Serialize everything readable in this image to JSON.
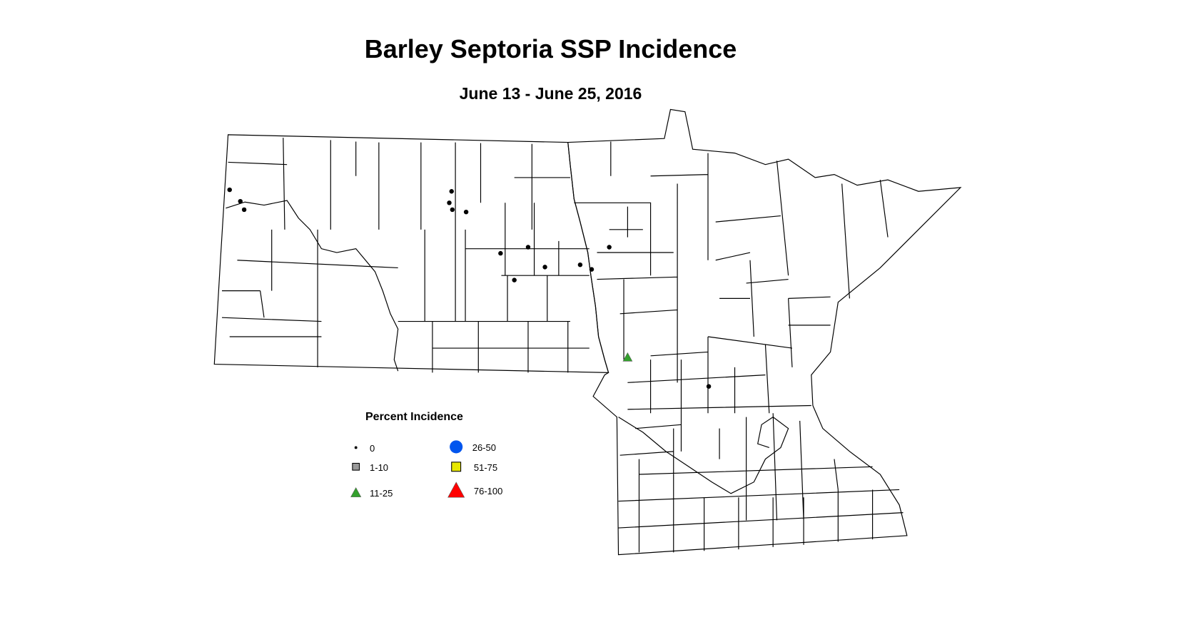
{
  "title": "Barley Septoria SSP Incidence",
  "subtitle": "June 13 - June 25, 2016",
  "legend": {
    "title": "Percent Incidence",
    "classes": [
      {
        "label": "0",
        "symbol": "dot",
        "color": "#000000"
      },
      {
        "label": "1-10",
        "symbol": "square",
        "color": "#999999"
      },
      {
        "label": "11-25",
        "symbol": "triangle",
        "color": "#33a02c"
      },
      {
        "label": "26-50",
        "symbol": "circle",
        "color": "#0055ee"
      },
      {
        "label": "51-75",
        "symbol": "square",
        "color": "#e8e800"
      },
      {
        "label": "76-100",
        "symbol": "triangle",
        "color": "#ff0000"
      }
    ]
  },
  "sites": [
    {
      "state": "ND",
      "class": "0"
    },
    {
      "state": "ND",
      "class": "0"
    },
    {
      "state": "ND",
      "class": "0"
    },
    {
      "state": "ND",
      "class": "0"
    },
    {
      "state": "ND",
      "class": "0"
    },
    {
      "state": "ND",
      "class": "0"
    },
    {
      "state": "ND",
      "class": "0"
    },
    {
      "state": "ND",
      "class": "0"
    },
    {
      "state": "ND",
      "class": "0"
    },
    {
      "state": "ND",
      "class": "0"
    },
    {
      "state": "ND",
      "class": "0"
    },
    {
      "state": "ND",
      "class": "0"
    },
    {
      "state": "ND",
      "class": "0"
    },
    {
      "state": "MN",
      "class": "0"
    },
    {
      "state": "MN",
      "class": "0"
    },
    {
      "state": "MN",
      "class": "11-25"
    }
  ]
}
